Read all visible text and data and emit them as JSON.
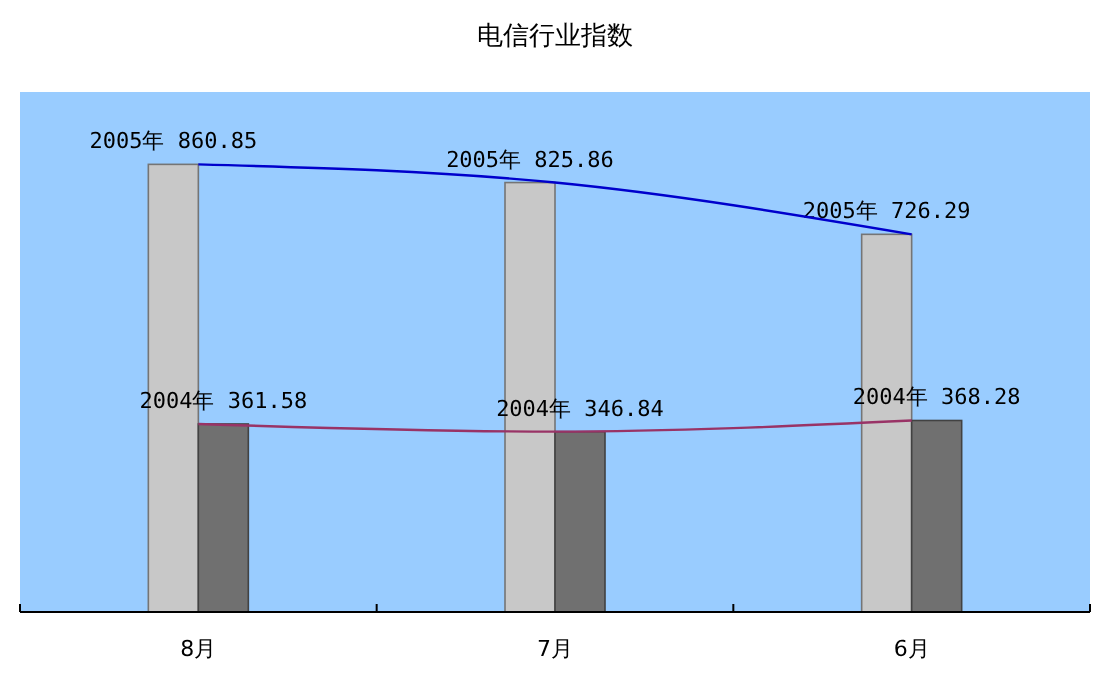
{
  "chart_data": {
    "type": "bar",
    "title": "电信行业指数",
    "categories": [
      "8月",
      "7月",
      "6月"
    ],
    "ylim": [
      0,
      1000
    ],
    "tick_labels": "x",
    "series": [
      {
        "color": "#c8c8c8",
        "values": [
          860.85,
          825.86,
          726.29
        ],
        "value_labels": [
          "2005年 860.85",
          "2005年 825.86",
          "2005年 726.29"
        ]
      },
      {
        "color": "#707070",
        "values": [
          361.58,
          346.84,
          368.28
        ],
        "value_labels": [
          "2004年 361.58",
          "2004年 346.84",
          "2004年 368.28"
        ]
      },
      {
        "type": "line",
        "color": "#0000cc",
        "values": [
          860.85,
          825.86,
          726.29
        ],
        "marker": "none"
      },
      {
        "type": "line",
        "color": "#993366",
        "values": [
          361.58,
          346.84,
          368.28
        ],
        "marker": "none"
      }
    ]
  }
}
